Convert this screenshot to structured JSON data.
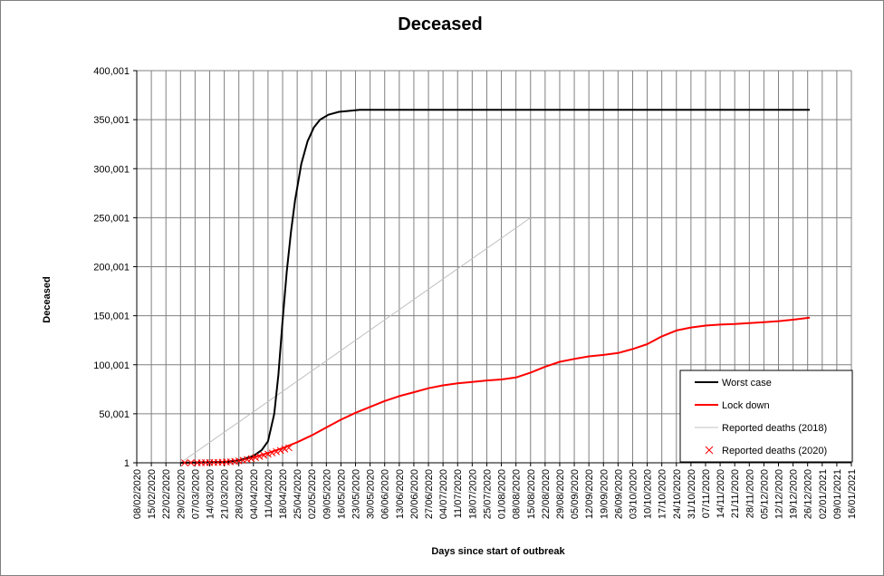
{
  "chart_data": {
    "type": "line",
    "title": "Deceased",
    "xlabel": "Days  since start of outbreak",
    "ylabel": "Deceased",
    "grid": true,
    "legend_position": "bottom-right",
    "y_ticks": [
      "1",
      "50,001",
      "100,001",
      "150,001",
      "200,001",
      "250,001",
      "300,001",
      "350,001",
      "400,001"
    ],
    "ylim": [
      1,
      400001
    ],
    "x_ticks": [
      "08/02/2020",
      "15/02/2020",
      "22/02/2020",
      "29/02/2020",
      "07/03/2020",
      "14/03/2020",
      "21/03/2020",
      "28/03/2020",
      "04/04/2020",
      "11/04/2020",
      "18/04/2020",
      "25/04/2020",
      "02/05/2020",
      "09/05/2020",
      "16/05/2020",
      "23/05/2020",
      "30/05/2020",
      "06/06/2020",
      "13/06/2020",
      "20/06/2020",
      "27/06/2020",
      "04/07/2020",
      "11/07/2020",
      "18/07/2020",
      "25/07/2020",
      "01/08/2020",
      "08/08/2020",
      "15/08/2020",
      "22/08/2020",
      "29/08/2020",
      "05/09/2020",
      "12/09/2020",
      "19/09/2020",
      "26/09/2020",
      "03/10/2020",
      "10/10/2020",
      "17/10/2020",
      "24/10/2020",
      "31/10/2020",
      "07/11/2020",
      "14/11/2020",
      "21/11/2020",
      "28/11/2020",
      "05/12/2020",
      "12/12/2020",
      "19/12/2020",
      "26/12/2020",
      "02/01/2021",
      "09/01/2021",
      "16/01/2021"
    ],
    "series": [
      {
        "name": "Worst case",
        "color": "#000000",
        "style": "line",
        "points": [
          [
            "29/02/2020",
            1
          ],
          [
            "21/03/2020",
            800
          ],
          [
            "28/03/2020",
            2500
          ],
          [
            "04/04/2020",
            7000
          ],
          [
            "08/04/2020",
            13000
          ],
          [
            "11/04/2020",
            22000
          ],
          [
            "14/04/2020",
            50000
          ],
          [
            "16/04/2020",
            90000
          ],
          [
            "18/04/2020",
            145000
          ],
          [
            "20/04/2020",
            195000
          ],
          [
            "22/04/2020",
            235000
          ],
          [
            "24/04/2020",
            268000
          ],
          [
            "27/04/2020",
            305000
          ],
          [
            "30/04/2020",
            328000
          ],
          [
            "03/05/2020",
            342000
          ],
          [
            "06/05/2020",
            350000
          ],
          [
            "10/05/2020",
            355000
          ],
          [
            "15/05/2020",
            358000
          ],
          [
            "25/05/2020",
            360000
          ],
          [
            "27/12/2020",
            360000
          ]
        ]
      },
      {
        "name": "Lock down",
        "color": "#ff0000",
        "style": "line",
        "points": [
          [
            "29/02/2020",
            1
          ],
          [
            "21/03/2020",
            800
          ],
          [
            "28/03/2020",
            2500
          ],
          [
            "04/04/2020",
            5500
          ],
          [
            "11/04/2020",
            10000
          ],
          [
            "18/04/2020",
            15000
          ],
          [
            "25/04/2020",
            21000
          ],
          [
            "02/05/2020",
            28000
          ],
          [
            "09/05/2020",
            36000
          ],
          [
            "16/05/2020",
            44000
          ],
          [
            "23/05/2020",
            51000
          ],
          [
            "30/05/2020",
            57000
          ],
          [
            "06/06/2020",
            63000
          ],
          [
            "13/06/2020",
            68000
          ],
          [
            "20/06/2020",
            72000
          ],
          [
            "27/06/2020",
            76000
          ],
          [
            "04/07/2020",
            79000
          ],
          [
            "11/07/2020",
            81000
          ],
          [
            "18/07/2020",
            82500
          ],
          [
            "25/07/2020",
            84000
          ],
          [
            "01/08/2020",
            85000
          ],
          [
            "08/08/2020",
            87000
          ],
          [
            "15/08/2020",
            92000
          ],
          [
            "22/08/2020",
            98000
          ],
          [
            "29/08/2020",
            103000
          ],
          [
            "05/09/2020",
            106000
          ],
          [
            "12/09/2020",
            108500
          ],
          [
            "19/09/2020",
            110000
          ],
          [
            "26/09/2020",
            112000
          ],
          [
            "03/10/2020",
            116000
          ],
          [
            "10/10/2020",
            121000
          ],
          [
            "17/10/2020",
            129000
          ],
          [
            "24/10/2020",
            135000
          ],
          [
            "31/10/2020",
            138000
          ],
          [
            "07/11/2020",
            140000
          ],
          [
            "14/11/2020",
            141000
          ],
          [
            "21/11/2020",
            141500
          ],
          [
            "28/11/2020",
            142500
          ],
          [
            "05/12/2020",
            143500
          ],
          [
            "12/12/2020",
            144500
          ],
          [
            "19/12/2020",
            146000
          ],
          [
            "27/12/2020",
            148000
          ]
        ]
      },
      {
        "name": "Reported deaths (2018)",
        "color": "#c0c0c0",
        "style": "line",
        "points": [
          [
            "29/02/2020",
            1
          ],
          [
            "15/08/2020",
            250001
          ]
        ]
      },
      {
        "name": "Reported deaths (2020)",
        "color": "#ff0000",
        "style": "marker-x",
        "points": [
          [
            "02/03/2020",
            1
          ],
          [
            "05/03/2020",
            1
          ],
          [
            "08/03/2020",
            1
          ],
          [
            "10/03/2020",
            50
          ],
          [
            "12/03/2020",
            100
          ],
          [
            "14/03/2020",
            200
          ],
          [
            "16/03/2020",
            300
          ],
          [
            "18/03/2020",
            400
          ],
          [
            "20/03/2020",
            600
          ],
          [
            "22/03/2020",
            800
          ],
          [
            "24/03/2020",
            1000
          ],
          [
            "26/03/2020",
            1400
          ],
          [
            "28/03/2020",
            1900
          ],
          [
            "30/03/2020",
            2600
          ],
          [
            "01/04/2020",
            3400
          ],
          [
            "03/04/2020",
            4300
          ],
          [
            "05/04/2020",
            5300
          ],
          [
            "07/04/2020",
            6400
          ],
          [
            "09/04/2020",
            7600
          ],
          [
            "11/04/2020",
            8800
          ],
          [
            "13/04/2020",
            10000
          ],
          [
            "15/04/2020",
            11300
          ],
          [
            "17/04/2020",
            12600
          ],
          [
            "19/04/2020",
            14000
          ],
          [
            "21/04/2020",
            15300
          ]
        ]
      }
    ]
  }
}
